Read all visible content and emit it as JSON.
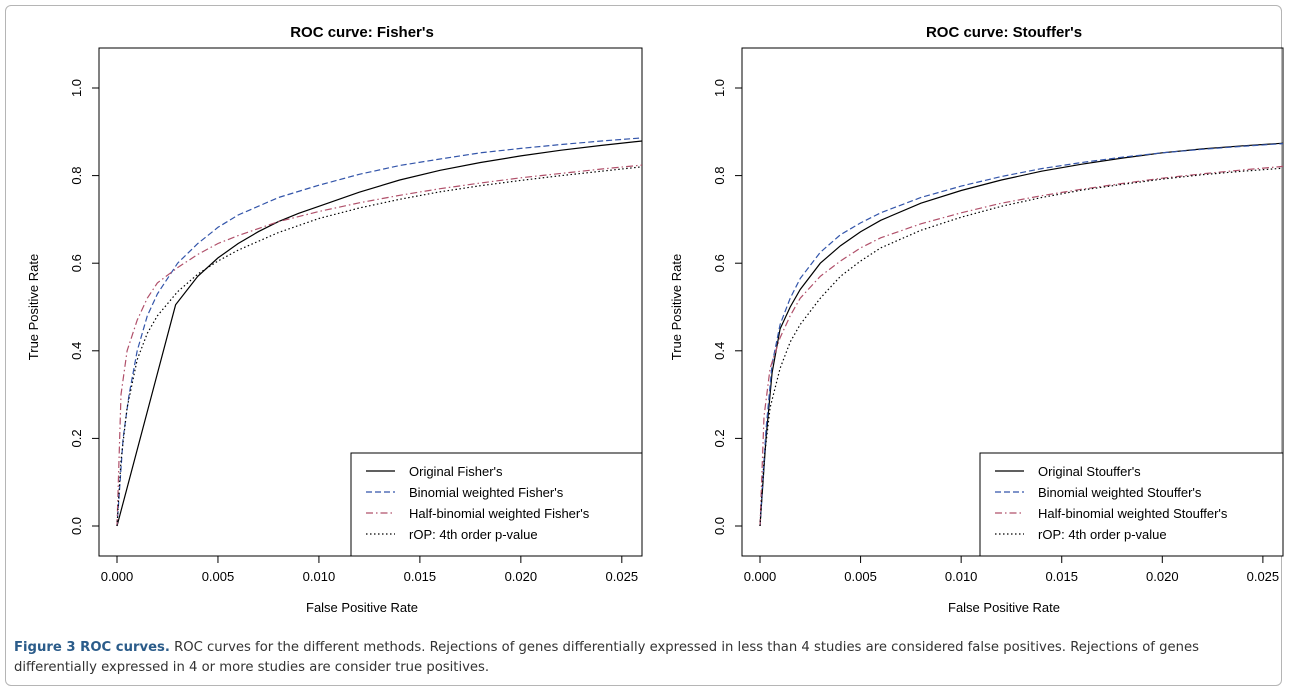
{
  "caption": {
    "label": "Figure 3 ROC curves.",
    "text": " ROC curves for the different methods. Rejections of genes differentially expressed in less than 4 studies are considered false positives. Rejections of genes differentially expressed in 4 or more studies are consider true positives."
  },
  "colors": {
    "original": "#000000",
    "binomial": "#3355aa",
    "half_binomial": "#b0506a",
    "rop": "#000000"
  },
  "chart_data": [
    {
      "type": "line",
      "title": "ROC curve: Fisher's",
      "xlabel": "False Positive Rate",
      "ylabel": "True Positive Rate",
      "xlim": [
        0,
        0.026
      ],
      "ylim": [
        0,
        1.0
      ],
      "xticks": [
        0.0,
        0.005,
        0.01,
        0.015,
        0.02,
        0.025
      ],
      "xtick_labels": [
        "0.000",
        "0.005",
        "0.010",
        "0.015",
        "0.020",
        "0.025"
      ],
      "yticks": [
        0.0,
        0.2,
        0.4,
        0.6,
        0.8,
        1.0
      ],
      "ytick_labels": [
        "0.0",
        "0.2",
        "0.4",
        "0.6",
        "0.8",
        "1.0"
      ],
      "legend_position": "bottom-right",
      "grid": false,
      "series": [
        {
          "name": "Original Fisher's",
          "style": "solid",
          "color_key": "original",
          "x": [
            0,
            0.0029,
            0.004,
            0.005,
            0.006,
            0.007,
            0.008,
            0.009,
            0.01,
            0.012,
            0.014,
            0.016,
            0.018,
            0.02,
            0.022,
            0.024,
            0.026
          ],
          "y": [
            0,
            0.505,
            0.57,
            0.612,
            0.645,
            0.672,
            0.695,
            0.714,
            0.73,
            0.762,
            0.79,
            0.812,
            0.83,
            0.845,
            0.858,
            0.869,
            0.879
          ]
        },
        {
          "name": "Binomial weighted Fisher's",
          "style": "dashed",
          "color_key": "binomial",
          "x": [
            0,
            0.0003,
            0.0006,
            0.001,
            0.0015,
            0.002,
            0.003,
            0.004,
            0.005,
            0.006,
            0.008,
            0.01,
            0.012,
            0.014,
            0.016,
            0.018,
            0.02,
            0.022,
            0.024,
            0.026
          ],
          "y": [
            0,
            0.2,
            0.3,
            0.4,
            0.48,
            0.53,
            0.6,
            0.645,
            0.682,
            0.71,
            0.75,
            0.778,
            0.803,
            0.823,
            0.838,
            0.852,
            0.862,
            0.871,
            0.879,
            0.886
          ]
        },
        {
          "name": "Half-binomial weighted Fisher's",
          "style": "dashdot",
          "color_key": "half_binomial",
          "x": [
            0,
            0.0002,
            0.0005,
            0.001,
            0.0015,
            0.002,
            0.003,
            0.004,
            0.005,
            0.006,
            0.008,
            0.01,
            0.012,
            0.014,
            0.016,
            0.018,
            0.02,
            0.022,
            0.024,
            0.026
          ],
          "y": [
            0,
            0.3,
            0.4,
            0.47,
            0.52,
            0.555,
            0.59,
            0.62,
            0.645,
            0.663,
            0.695,
            0.718,
            0.738,
            0.755,
            0.77,
            0.783,
            0.795,
            0.805,
            0.815,
            0.824
          ]
        },
        {
          "name": "rOP: 4th order p-value",
          "style": "dotted",
          "color_key": "rop",
          "x": [
            0,
            0.0002,
            0.0005,
            0.001,
            0.0015,
            0.002,
            0.003,
            0.004,
            0.005,
            0.006,
            0.008,
            0.01,
            0.012,
            0.014,
            0.016,
            0.018,
            0.02,
            0.022,
            0.024,
            0.026
          ],
          "y": [
            0,
            0.15,
            0.27,
            0.38,
            0.44,
            0.48,
            0.535,
            0.575,
            0.605,
            0.63,
            0.67,
            0.702,
            0.726,
            0.746,
            0.763,
            0.777,
            0.789,
            0.8,
            0.81,
            0.82
          ]
        }
      ]
    },
    {
      "type": "line",
      "title": "ROC curve: Stouffer's",
      "xlabel": "False Positive Rate",
      "ylabel": "True Positive Rate",
      "xlim": [
        0,
        0.026
      ],
      "ylim": [
        0,
        1.0
      ],
      "xticks": [
        0.0,
        0.005,
        0.01,
        0.015,
        0.02,
        0.025
      ],
      "xtick_labels": [
        "0.000",
        "0.005",
        "0.010",
        "0.015",
        "0.020",
        "0.025"
      ],
      "yticks": [
        0.0,
        0.2,
        0.4,
        0.6,
        0.8,
        1.0
      ],
      "ytick_labels": [
        "0.0",
        "0.2",
        "0.4",
        "0.6",
        "0.8",
        "1.0"
      ],
      "legend_position": "bottom-right",
      "grid": false,
      "series": [
        {
          "name": "Original Stouffer's",
          "style": "solid",
          "color_key": "original",
          "x": [
            0,
            0.0003,
            0.0006,
            0.001,
            0.0015,
            0.002,
            0.003,
            0.004,
            0.005,
            0.006,
            0.008,
            0.01,
            0.012,
            0.014,
            0.016,
            0.018,
            0.02,
            0.022,
            0.024,
            0.026
          ],
          "y": [
            0,
            0.2,
            0.35,
            0.45,
            0.5,
            0.54,
            0.6,
            0.64,
            0.672,
            0.698,
            0.737,
            0.766,
            0.79,
            0.81,
            0.826,
            0.84,
            0.852,
            0.861,
            0.868,
            0.874
          ]
        },
        {
          "name": "Binomial weighted Stouffer's",
          "style": "dashed",
          "color_key": "binomial",
          "x": [
            0,
            0.0003,
            0.0006,
            0.001,
            0.0015,
            0.002,
            0.003,
            0.004,
            0.005,
            0.006,
            0.008,
            0.01,
            0.012,
            0.014,
            0.016,
            0.018,
            0.02,
            0.022,
            0.024,
            0.026
          ],
          "y": [
            0,
            0.22,
            0.37,
            0.46,
            0.52,
            0.565,
            0.625,
            0.665,
            0.692,
            0.715,
            0.75,
            0.776,
            0.798,
            0.816,
            0.83,
            0.842,
            0.852,
            0.86,
            0.867,
            0.873
          ]
        },
        {
          "name": "Half-binomial weighted Stouffer's",
          "style": "dashdot",
          "color_key": "half_binomial",
          "x": [
            0,
            0.0002,
            0.0005,
            0.001,
            0.0015,
            0.002,
            0.003,
            0.004,
            0.005,
            0.006,
            0.008,
            0.01,
            0.012,
            0.014,
            0.016,
            0.018,
            0.02,
            0.022,
            0.024,
            0.026
          ],
          "y": [
            0,
            0.25,
            0.36,
            0.43,
            0.48,
            0.52,
            0.57,
            0.605,
            0.635,
            0.658,
            0.69,
            0.715,
            0.737,
            0.754,
            0.769,
            0.782,
            0.794,
            0.804,
            0.813,
            0.821
          ]
        },
        {
          "name": "rOP: 4th order p-value",
          "style": "dotted",
          "color_key": "rop",
          "x": [
            0,
            0.0002,
            0.0005,
            0.001,
            0.0015,
            0.002,
            0.003,
            0.004,
            0.005,
            0.006,
            0.008,
            0.01,
            0.012,
            0.014,
            0.016,
            0.018,
            0.02,
            0.022,
            0.024,
            0.026
          ],
          "y": [
            0,
            0.15,
            0.27,
            0.36,
            0.42,
            0.46,
            0.52,
            0.57,
            0.605,
            0.635,
            0.675,
            0.705,
            0.73,
            0.75,
            0.767,
            0.78,
            0.792,
            0.802,
            0.81,
            0.817
          ]
        }
      ]
    }
  ]
}
